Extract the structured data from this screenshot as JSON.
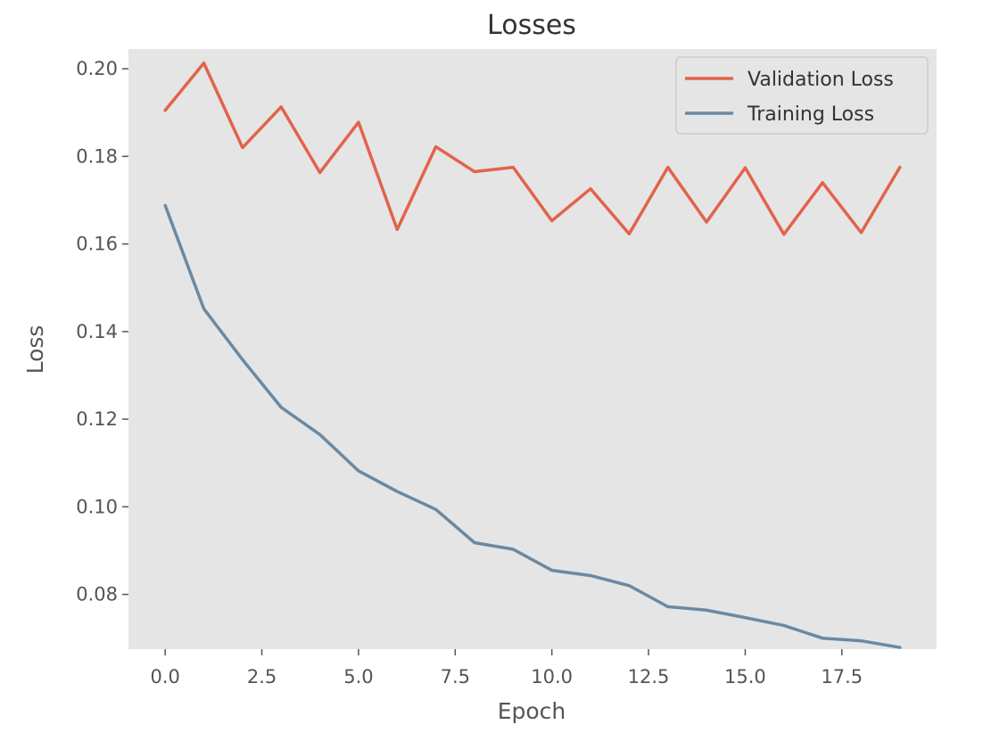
{
  "chart_data": {
    "type": "line",
    "title": "Losses",
    "xlabel": "Epoch",
    "ylabel": "Loss",
    "xlim": [
      -0.95,
      19.95
    ],
    "ylim": [
      0.0675,
      0.2045
    ],
    "x_ticks": [
      "0.0",
      "2.5",
      "5.0",
      "7.5",
      "10.0",
      "12.5",
      "15.0",
      "17.5"
    ],
    "x_tick_values": [
      0,
      2.5,
      5,
      7.5,
      10,
      12.5,
      15,
      17.5
    ],
    "y_ticks": [
      "0.08",
      "0.10",
      "0.12",
      "0.14",
      "0.16",
      "0.18",
      "0.20"
    ],
    "y_tick_values": [
      0.08,
      0.1,
      0.12,
      0.14,
      0.16,
      0.18,
      0.2
    ],
    "grid": false,
    "legend_position": "top-right",
    "background": "#e5e5e5",
    "x": [
      0,
      1,
      2,
      3,
      4,
      5,
      6,
      7,
      8,
      9,
      10,
      11,
      12,
      13,
      14,
      15,
      16,
      17,
      18,
      19
    ],
    "series": [
      {
        "name": "Validation Loss",
        "color": "#e2634c",
        "values": [
          0.1905,
          0.2013,
          0.182,
          0.1913,
          0.1763,
          0.1878,
          0.1633,
          0.1822,
          0.1765,
          0.1775,
          0.1653,
          0.1726,
          0.1623,
          0.1775,
          0.165,
          0.1774,
          0.1622,
          0.174,
          0.1626,
          0.1775
        ]
      },
      {
        "name": "Training Loss",
        "color": "#6a89a3",
        "values": [
          0.1688,
          0.1452,
          0.1336,
          0.1227,
          0.1165,
          0.1082,
          0.1035,
          0.0994,
          0.0918,
          0.0903,
          0.0855,
          0.0843,
          0.082,
          0.0772,
          0.0764,
          0.0747,
          0.0729,
          0.07,
          0.0694,
          0.0679
        ]
      }
    ]
  }
}
